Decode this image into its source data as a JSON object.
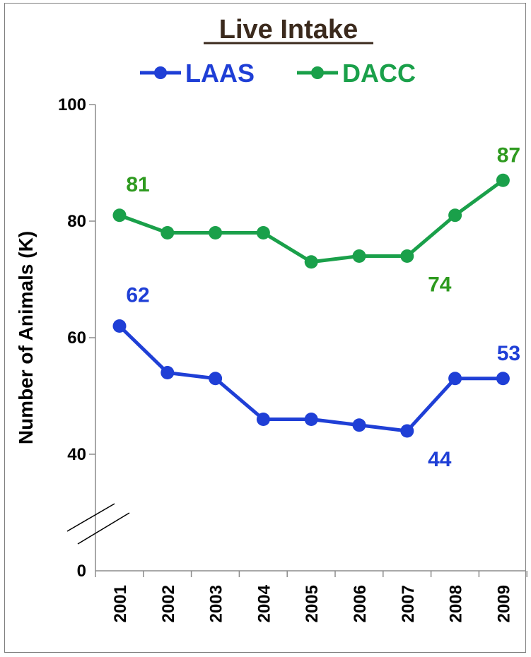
{
  "chart_data": {
    "type": "line",
    "title": "Live Intake",
    "ylabel": "Number of Animals (K)",
    "xlabel": "",
    "x": [
      "2001",
      "2002",
      "2003",
      "2004",
      "2005",
      "2006",
      "2007",
      "2008",
      "2009"
    ],
    "y_ticks": [
      "0",
      "40",
      "60",
      "80",
      "100"
    ],
    "axis_break": true,
    "ylim": [
      0,
      100
    ],
    "legend_position": "top",
    "grid": false,
    "series": [
      {
        "name": "LAAS",
        "color": "#1f3fd6",
        "values": [
          62,
          54,
          53,
          46,
          46,
          45,
          44,
          53,
          53
        ]
      },
      {
        "name": "DACC",
        "color": "#1aa04a",
        "label_color": "#2e9a1f",
        "values": [
          81,
          78,
          78,
          78,
          73,
          74,
          74,
          81,
          87
        ]
      }
    ],
    "annotations": [
      {
        "series": "LAAS",
        "x": "2001",
        "text": "62"
      },
      {
        "series": "LAAS",
        "x": "2007",
        "text": "44"
      },
      {
        "series": "LAAS",
        "x": "2009",
        "text": "53"
      },
      {
        "series": "DACC",
        "x": "2001",
        "text": "81"
      },
      {
        "series": "DACC",
        "x": "2007",
        "text": "74"
      },
      {
        "series": "DACC",
        "x": "2009",
        "text": "87"
      }
    ]
  }
}
